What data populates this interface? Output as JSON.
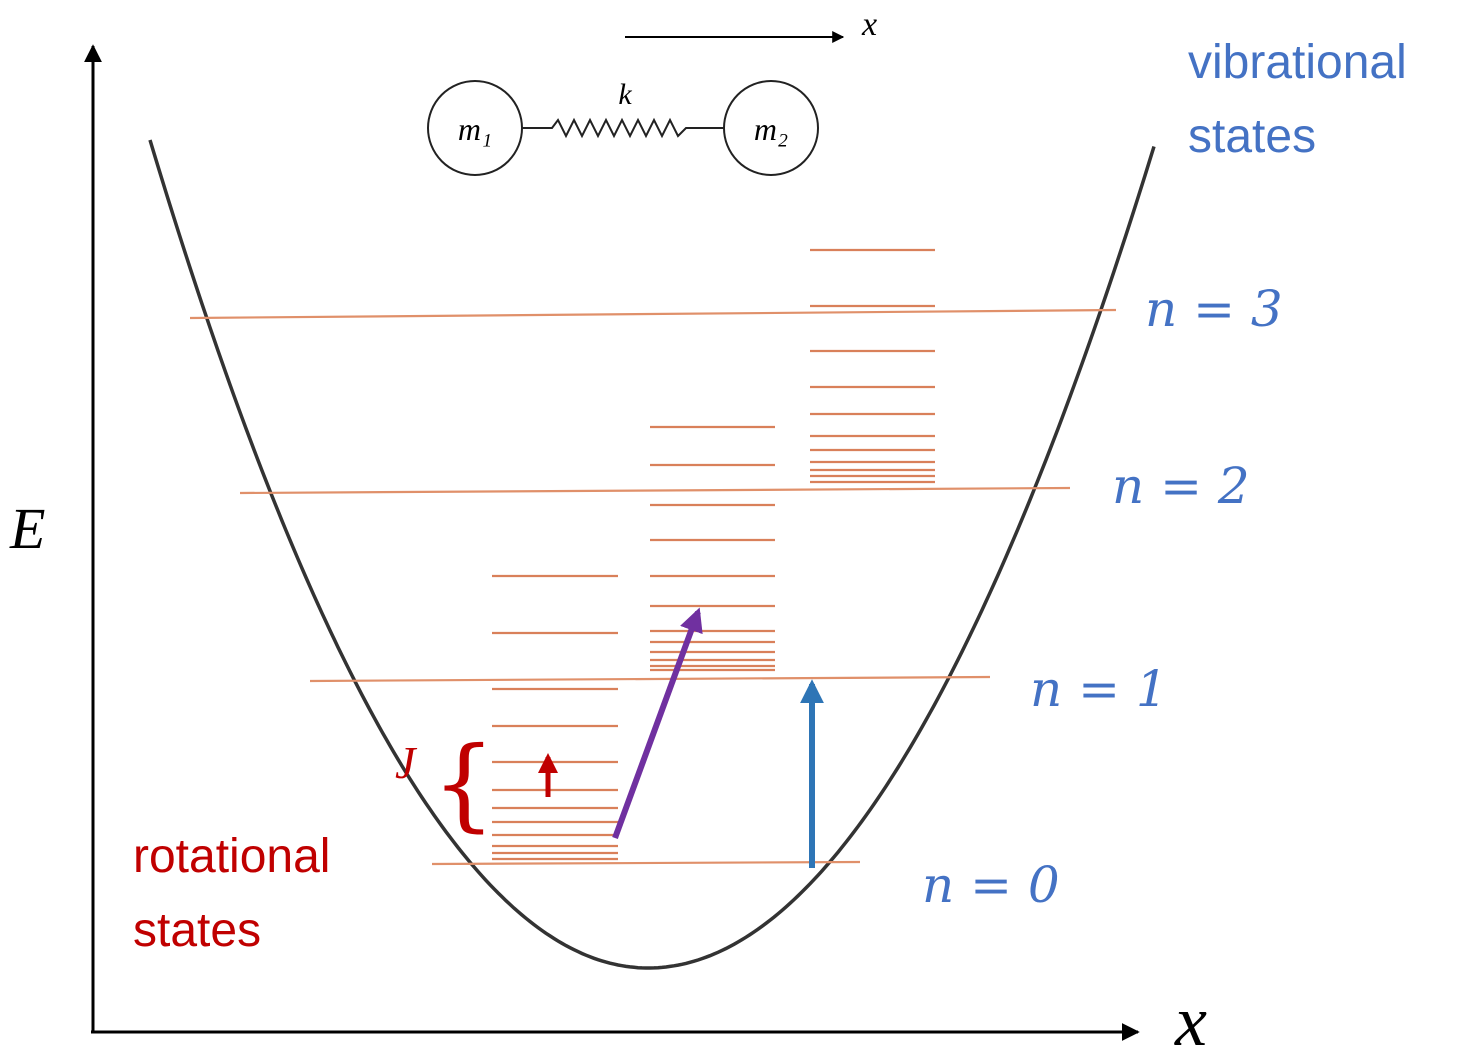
{
  "axis": {
    "y_label": "E",
    "x_label": "x"
  },
  "molecule": {
    "mass_1": "m₁",
    "mass_2": "m₂",
    "spring": "k",
    "direction": "x"
  },
  "vibrational": {
    "title": [
      "vibrational",
      "states"
    ],
    "levels": [
      "n = 3",
      "n = 2",
      "n = 1",
      "n = 0"
    ]
  },
  "rotational": {
    "title": [
      "rotational",
      "states"
    ],
    "spacing": "J"
  }
}
